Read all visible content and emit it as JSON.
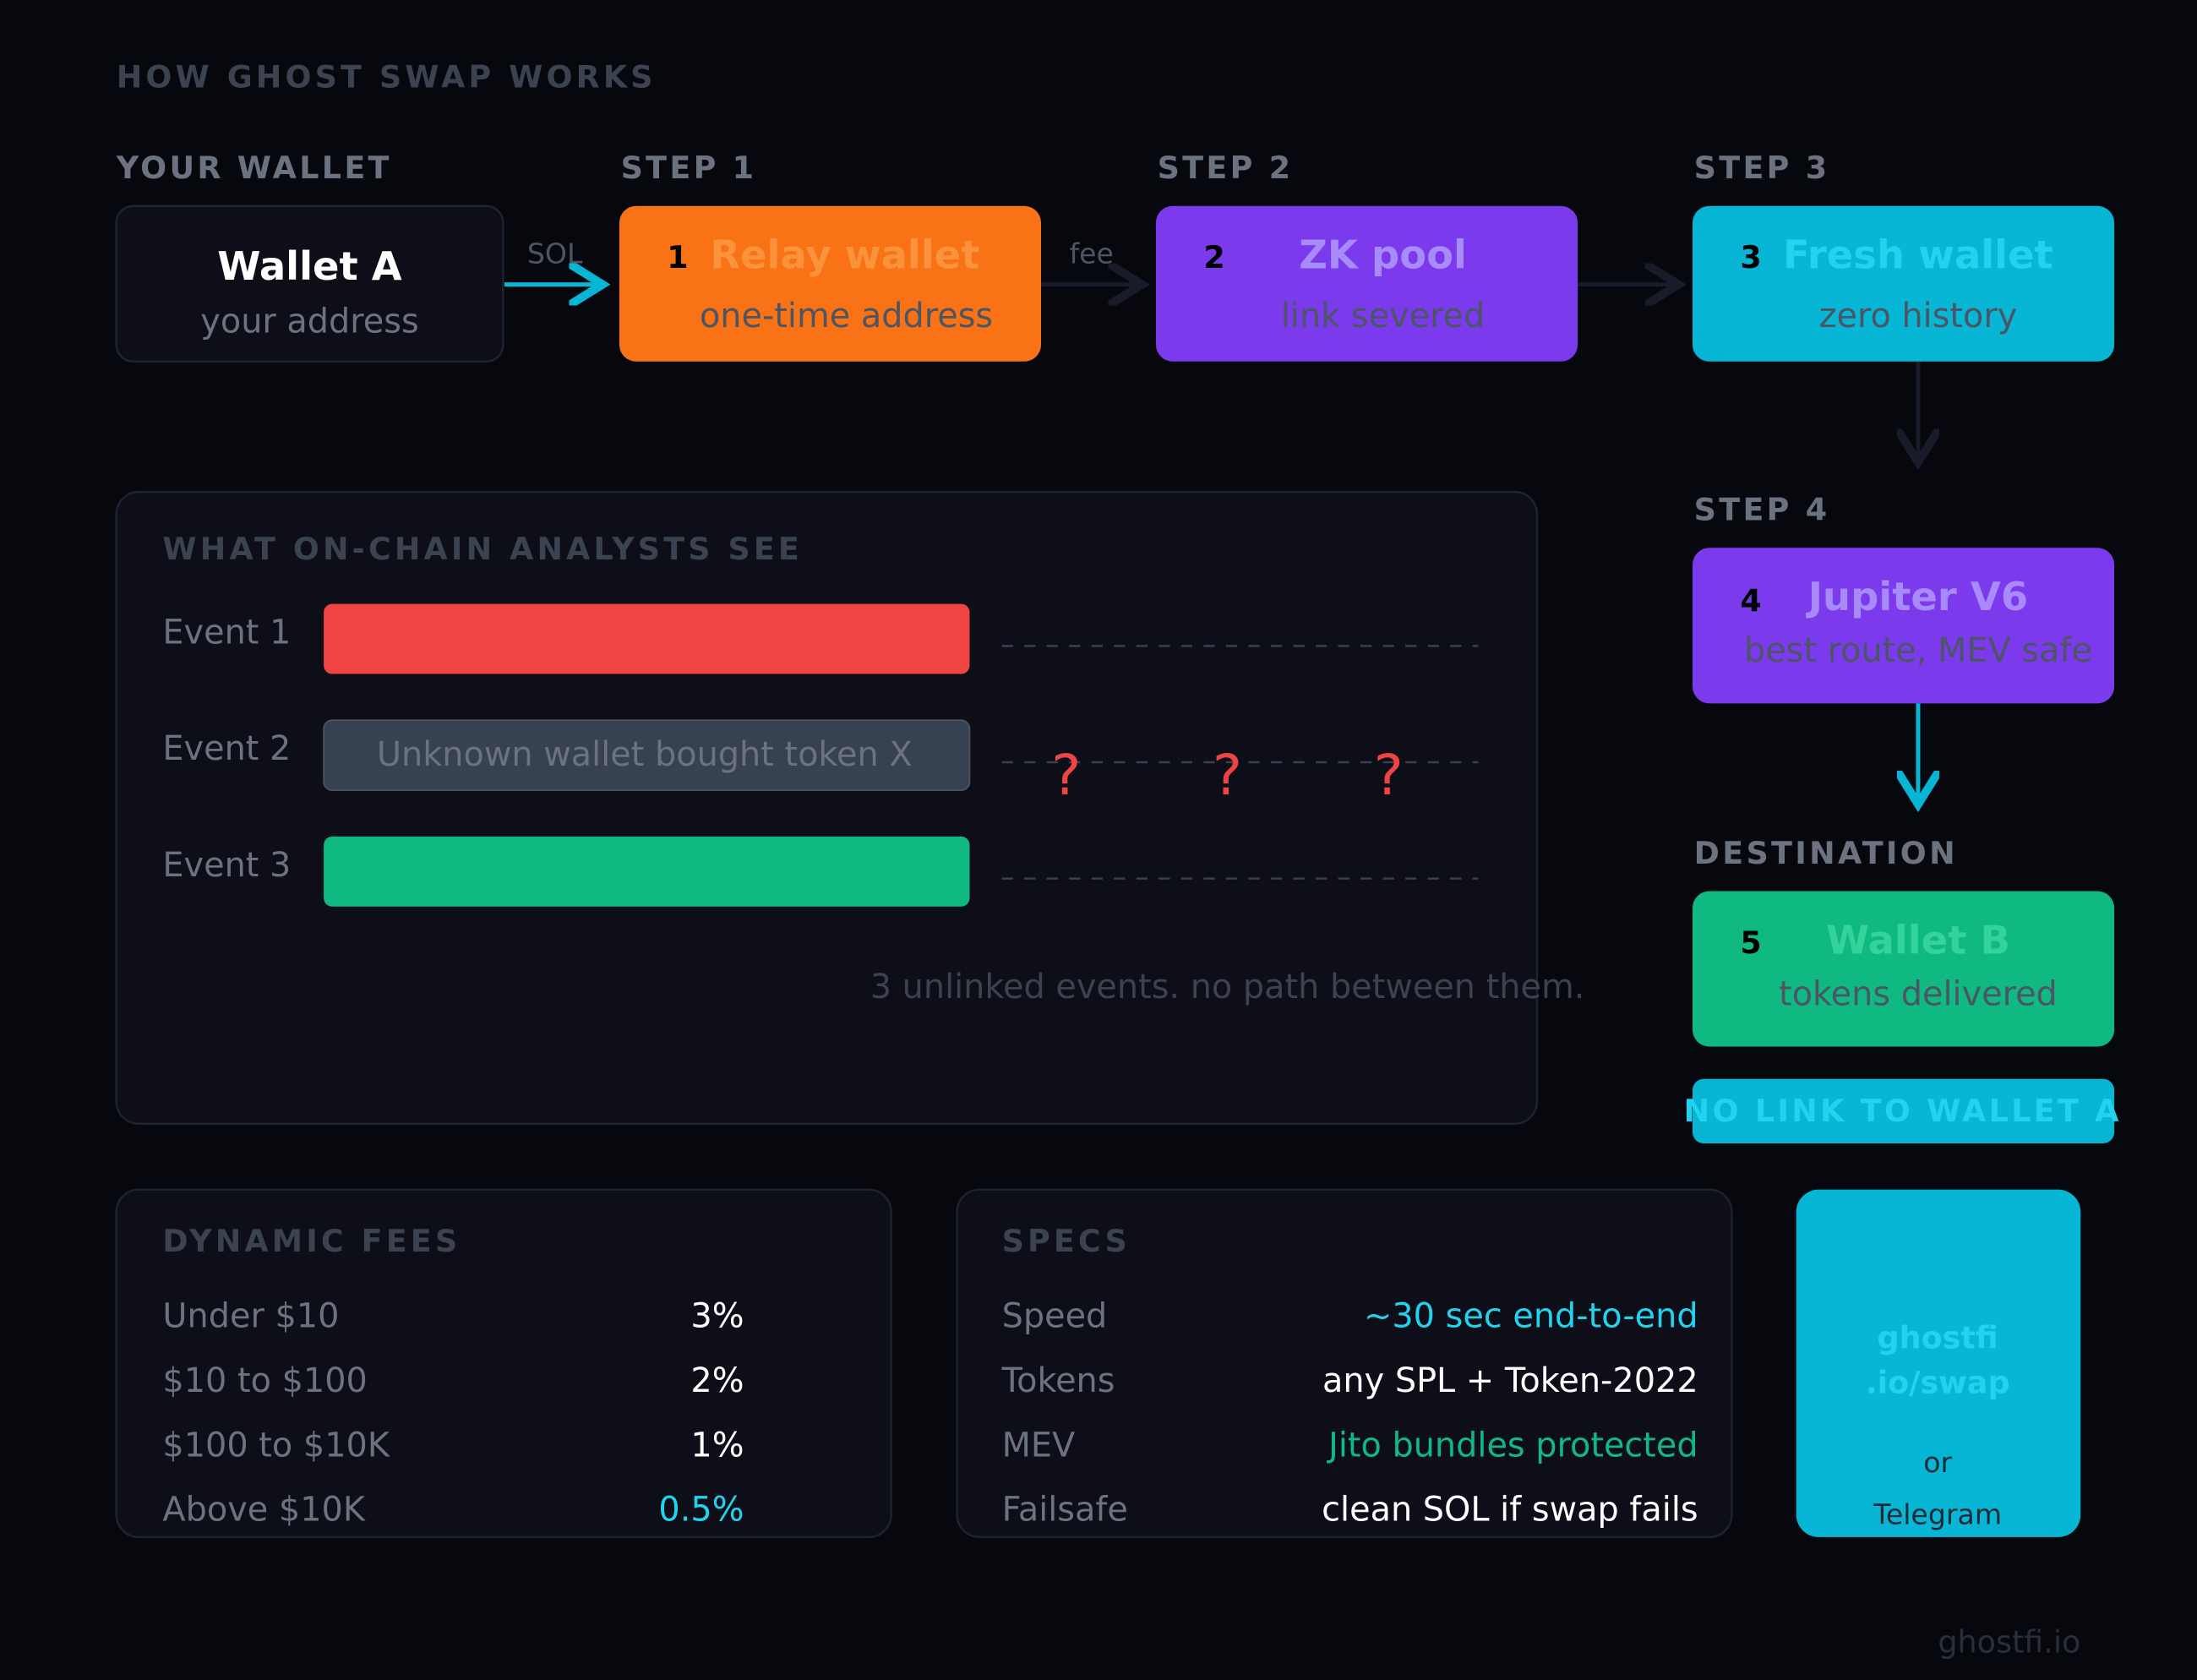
{
  "header": {
    "title": "HOW GHOST SWAP WORKS"
  },
  "flow": [
    {
      "label": "YOUR WALLET",
      "title": "Wallet A",
      "subtitle": "your address"
    },
    {
      "label": "STEP 1",
      "number": 1,
      "title": "Relay wallet",
      "subtitle": "one-time address"
    },
    {
      "label": "STEP 2",
      "number": 2,
      "title": "ZK pool",
      "subtitle": "link severed"
    },
    {
      "label": "STEP 3",
      "number": 3,
      "title": "Fresh wallet",
      "subtitle": "zero history"
    },
    {
      "label": "STEP 4",
      "number": 4,
      "title": "Jupiter V6",
      "subtitle": "best route, MEV safe"
    },
    {
      "label": "DESTINATION",
      "number": 5,
      "title": "Wallet B",
      "subtitle": "tokens delivered"
    }
  ],
  "arrows": [
    "SOL",
    "fee"
  ],
  "badge": "NO LINK TO WALLET A",
  "analysts": {
    "title": "WHAT ON-CHAIN ANALYSTS SEE",
    "events": [
      {
        "label": "Event 1"
      },
      {
        "label": "Event 2",
        "text": "Unknown wallet bought token X"
      },
      {
        "label": "Event 3"
      }
    ],
    "marks": [
      "?",
      "?",
      "?"
    ],
    "caption": "3 unlinked events. no path between them."
  },
  "fees": {
    "title": "DYNAMIC FEES",
    "rows": [
      [
        "Under $10",
        "3%"
      ],
      [
        "$10 to $100",
        "2%"
      ],
      [
        "$100 to $10K",
        "1%"
      ],
      [
        "Above $10K",
        "0.5%"
      ]
    ]
  },
  "specs": {
    "title": "SPECS",
    "rows": [
      [
        "Speed",
        "~30 sec end-to-end"
      ],
      [
        "Tokens",
        "any SPL + Token-2022"
      ],
      [
        "MEV",
        "Jito bundles protected"
      ],
      [
        "Failsafe",
        "clean SOL if swap fails"
      ]
    ]
  },
  "cta": {
    "lines": [
      "ghostfi",
      ".io/swap"
    ],
    "or": "or",
    "alt": "Telegram"
  },
  "footer": "ghostfi.io"
}
